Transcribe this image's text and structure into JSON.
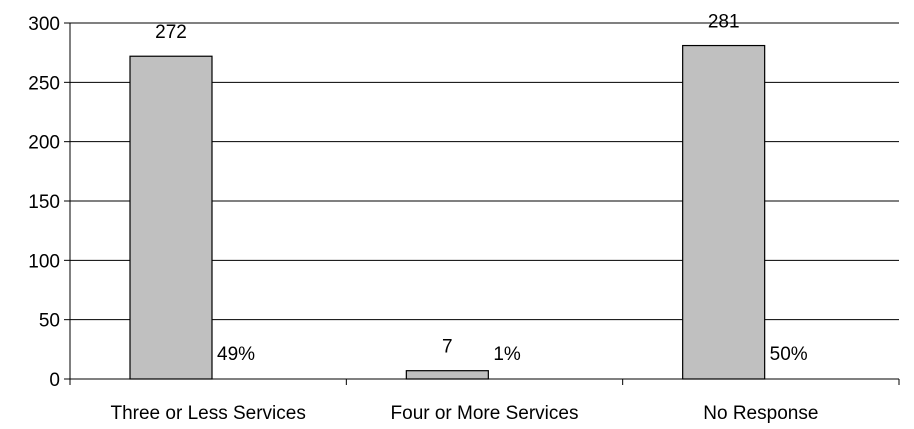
{
  "chart_data": {
    "type": "bar",
    "categories": [
      "Three or Less Services",
      "Four or More Services",
      "No Response"
    ],
    "values": [
      272,
      7,
      281
    ],
    "value_labels": [
      "272",
      "7",
      "281"
    ],
    "percent_labels": [
      "49%",
      "1%",
      "50%"
    ],
    "title": "",
    "xlabel": "",
    "ylabel": "",
    "ylim": [
      0,
      300
    ],
    "yticks": [
      0,
      50,
      100,
      150,
      200,
      250,
      300
    ],
    "ytick_labels": [
      "0",
      "50",
      "100",
      "150",
      "200",
      "250",
      "300"
    ],
    "grid": true,
    "legend": "none",
    "colors": {
      "bar_fill": "#c0c0c0",
      "bar_stroke": "#000000",
      "grid": "#000000",
      "axis": "#000000"
    }
  }
}
